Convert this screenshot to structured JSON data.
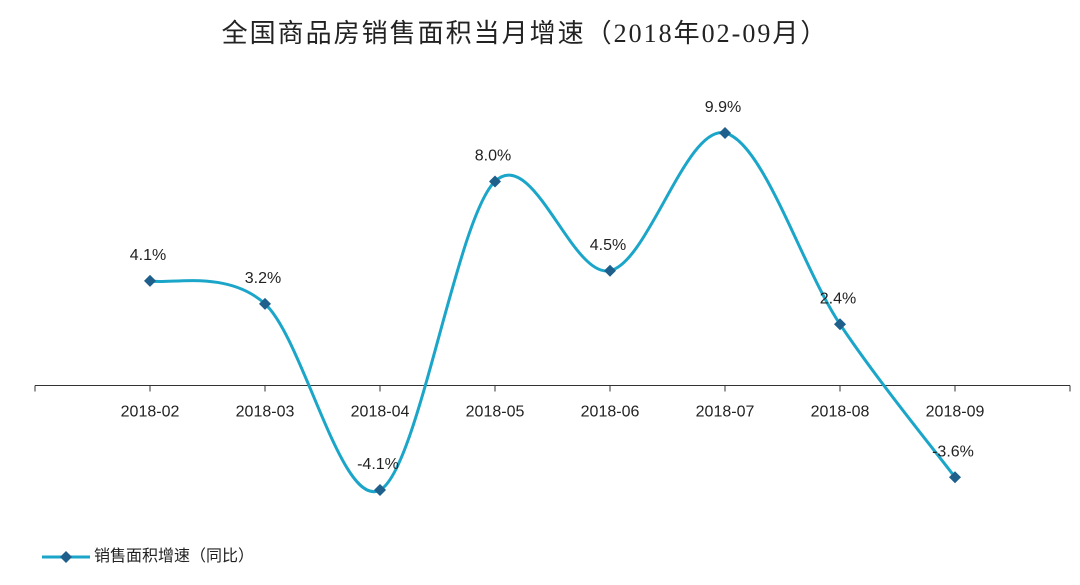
{
  "chart_data": {
    "type": "line",
    "title": "全国商品房销售面积当月增速（2018年02-09月）",
    "categories": [
      "2018-02",
      "2018-03",
      "2018-04",
      "2018-05",
      "2018-06",
      "2018-07",
      "2018-08",
      "2018-09"
    ],
    "series": [
      {
        "name": "销售面积增速（同比）",
        "color": "#1ba6c9",
        "marker_color": "#1f5f8b",
        "values": [
          4.1,
          3.2,
          -4.1,
          8.0,
          4.5,
          9.9,
          2.4,
          -3.6
        ],
        "value_labels": [
          "4.1%",
          "3.2%",
          "-4.1%",
          "8.0%",
          "4.5%",
          "9.9%",
          "2.4%",
          "-3.6%"
        ]
      }
    ],
    "smooth": true,
    "legend": "bottom-left"
  }
}
